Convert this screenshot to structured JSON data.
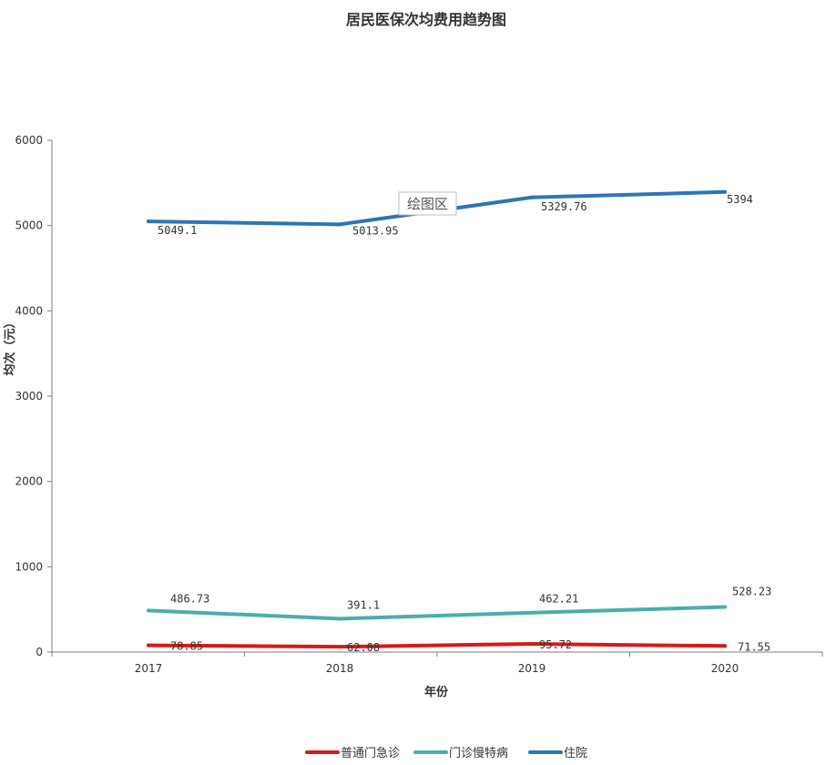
{
  "chart_data": {
    "type": "line",
    "title": "居民医保次均费用趋势图",
    "xlabel": "年份",
    "ylabel": "均次（元）",
    "categories": [
      "2017",
      "2018",
      "2019",
      "2020"
    ],
    "ylim": [
      0,
      6000
    ],
    "yticks": [
      "0",
      "1000",
      "2000",
      "3000",
      "4000",
      "5000",
      "6000"
    ],
    "grid": false,
    "legend_position": "bottom",
    "series": [
      {
        "name": "普通门急诊",
        "color": "#d7191c",
        "values": [
          78.85,
          62.08,
          95.72,
          71.55
        ],
        "labels": [
          "78.85",
          "62.08",
          "95.72",
          "71.55"
        ]
      },
      {
        "name": "门诊慢特病",
        "color": "#4aaeaa",
        "values": [
          486.73,
          391.1,
          462.21,
          528.23
        ],
        "labels": [
          "486.73",
          "391.1",
          "462.21",
          "528.23"
        ]
      },
      {
        "name": "住院",
        "color": "#2e75b6",
        "values": [
          5049.1,
          5013.95,
          5329.76,
          5394
        ],
        "labels": [
          "5049.1",
          "5013.95",
          "5329.76",
          "5394"
        ]
      }
    ],
    "annotation": "绘图区"
  }
}
